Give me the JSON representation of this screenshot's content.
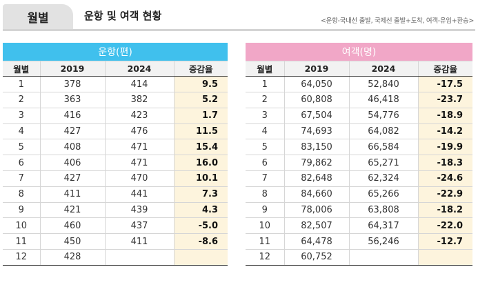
{
  "header": {
    "tab_label": "월별",
    "title": "운항 및 여객 현황",
    "note": "<운항-국내선 출발, 국제선 출발+도착, 여객-유임+환승>"
  },
  "flights": {
    "title": "운항(편)",
    "accent": "#40c0ed",
    "columns": [
      "월별",
      "2019",
      "2024",
      "증감율"
    ],
    "rows": [
      [
        "1",
        "378",
        "414",
        "9.5"
      ],
      [
        "2",
        "363",
        "382",
        "5.2"
      ],
      [
        "3",
        "416",
        "423",
        "1.7"
      ],
      [
        "4",
        "427",
        "476",
        "11.5"
      ],
      [
        "5",
        "408",
        "471",
        "15.4"
      ],
      [
        "6",
        "406",
        "471",
        "16.0"
      ],
      [
        "7",
        "427",
        "470",
        "10.1"
      ],
      [
        "8",
        "411",
        "441",
        "7.3"
      ],
      [
        "9",
        "421",
        "439",
        "4.3"
      ],
      [
        "10",
        "460",
        "437",
        "-5.0"
      ],
      [
        "11",
        "450",
        "411",
        "-8.6"
      ],
      [
        "12",
        "428",
        "",
        ""
      ]
    ]
  },
  "passengers": {
    "title": "여객(명)",
    "accent": "#f1a7c7",
    "columns": [
      "월별",
      "2019",
      "2024",
      "증감율"
    ],
    "rows": [
      [
        "1",
        "64,050",
        "52,840",
        "-17.5"
      ],
      [
        "2",
        "60,808",
        "46,418",
        "-23.7"
      ],
      [
        "3",
        "67,504",
        "54,776",
        "-18.9"
      ],
      [
        "4",
        "74,693",
        "64,082",
        "-14.2"
      ],
      [
        "5",
        "83,150",
        "66,584",
        "-19.9"
      ],
      [
        "6",
        "79,862",
        "65,271",
        "-18.3"
      ],
      [
        "7",
        "82,648",
        "62,324",
        "-24.6"
      ],
      [
        "8",
        "84,660",
        "65,266",
        "-22.9"
      ],
      [
        "9",
        "78,006",
        "63,808",
        "-18.2"
      ],
      [
        "10",
        "82,507",
        "64,317",
        "-22.0"
      ],
      [
        "11",
        "64,478",
        "56,246",
        "-12.7"
      ],
      [
        "12",
        "60,752",
        "",
        ""
      ]
    ]
  }
}
